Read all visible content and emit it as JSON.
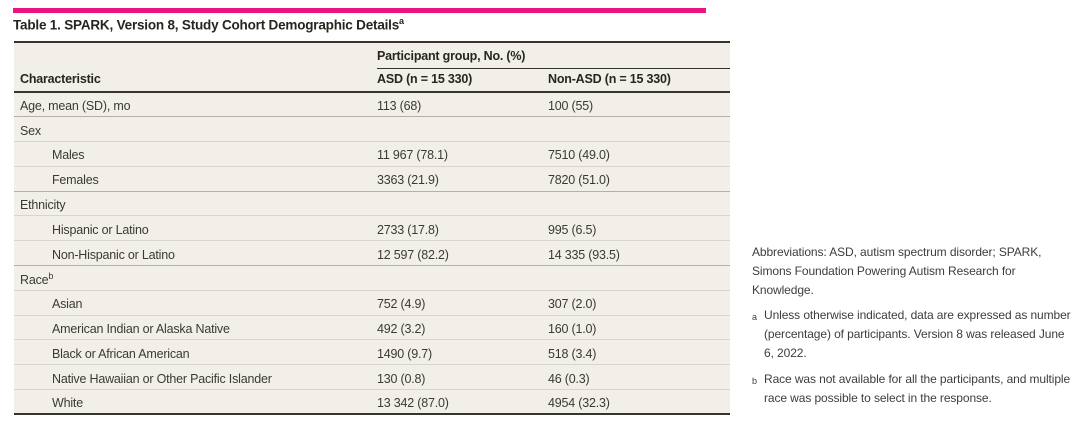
{
  "colors": {
    "accent": "#ec1580",
    "table_background": "#f1efe7"
  },
  "table": {
    "title": "Table 1. SPARK, Version 8, Study Cohort Demographic Details",
    "title_superscript": "a",
    "spanner": "Participant group, No. (%)",
    "columns": [
      "Characteristic",
      "ASD (n = 15 330)",
      "Non-ASD (n = 15 330)"
    ],
    "rows": [
      {
        "label": "Age, mean (SD), mo",
        "indent": 0,
        "section": false,
        "asd": "113 (68)",
        "non_asd": "100 (55)"
      },
      {
        "label": "Sex",
        "indent": 0,
        "section": true,
        "asd": "",
        "non_asd": ""
      },
      {
        "label": "Males",
        "indent": 1,
        "section": false,
        "asd": "11 967 (78.1)",
        "non_asd": "7510 (49.0)"
      },
      {
        "label": "Females",
        "indent": 1,
        "section": false,
        "asd": "3363 (21.9)",
        "non_asd": "7820 (51.0)"
      },
      {
        "label": "Ethnicity",
        "indent": 0,
        "section": true,
        "asd": "",
        "non_asd": ""
      },
      {
        "label": "Hispanic or Latino",
        "indent": 1,
        "section": false,
        "asd": "2733 (17.8)",
        "non_asd": "995 (6.5)"
      },
      {
        "label": "Non-Hispanic or Latino",
        "indent": 1,
        "section": false,
        "asd": "12 597 (82.2)",
        "non_asd": "14 335 (93.5)"
      },
      {
        "label": "Race",
        "label_superscript": "b",
        "indent": 0,
        "section": true,
        "asd": "",
        "non_asd": ""
      },
      {
        "label": "Asian",
        "indent": 1,
        "section": false,
        "asd": "752 (4.9)",
        "non_asd": "307 (2.0)"
      },
      {
        "label": "American Indian or Alaska Native",
        "indent": 1,
        "section": false,
        "asd": "492 (3.2)",
        "non_asd": "160 (1.0)"
      },
      {
        "label": "Black or African American",
        "indent": 1,
        "section": false,
        "asd": "1490 (9.7)",
        "non_asd": "518 (3.4)"
      },
      {
        "label": "Native Hawaiian or Other Pacific Islander",
        "indent": 1,
        "section": false,
        "asd": "130 (0.8)",
        "non_asd": "46 (0.3)"
      },
      {
        "label": "White",
        "indent": 1,
        "section": false,
        "asd": "13 342 (87.0)",
        "non_asd": "4954 (32.3)"
      }
    ]
  },
  "notes": {
    "abbreviations": "Abbreviations: ASD, autism spectrum disorder; SPARK, Simons Foundation Powering Autism Research for Knowledge.",
    "footnotes": [
      {
        "marker": "a",
        "text": "Unless otherwise indicated, data are expressed as number (percentage) of participants. Version 8 was released June 6, 2022."
      },
      {
        "marker": "b",
        "text": "Race was not available for all the participants, and multiple race was possible to select in the response."
      }
    ]
  }
}
